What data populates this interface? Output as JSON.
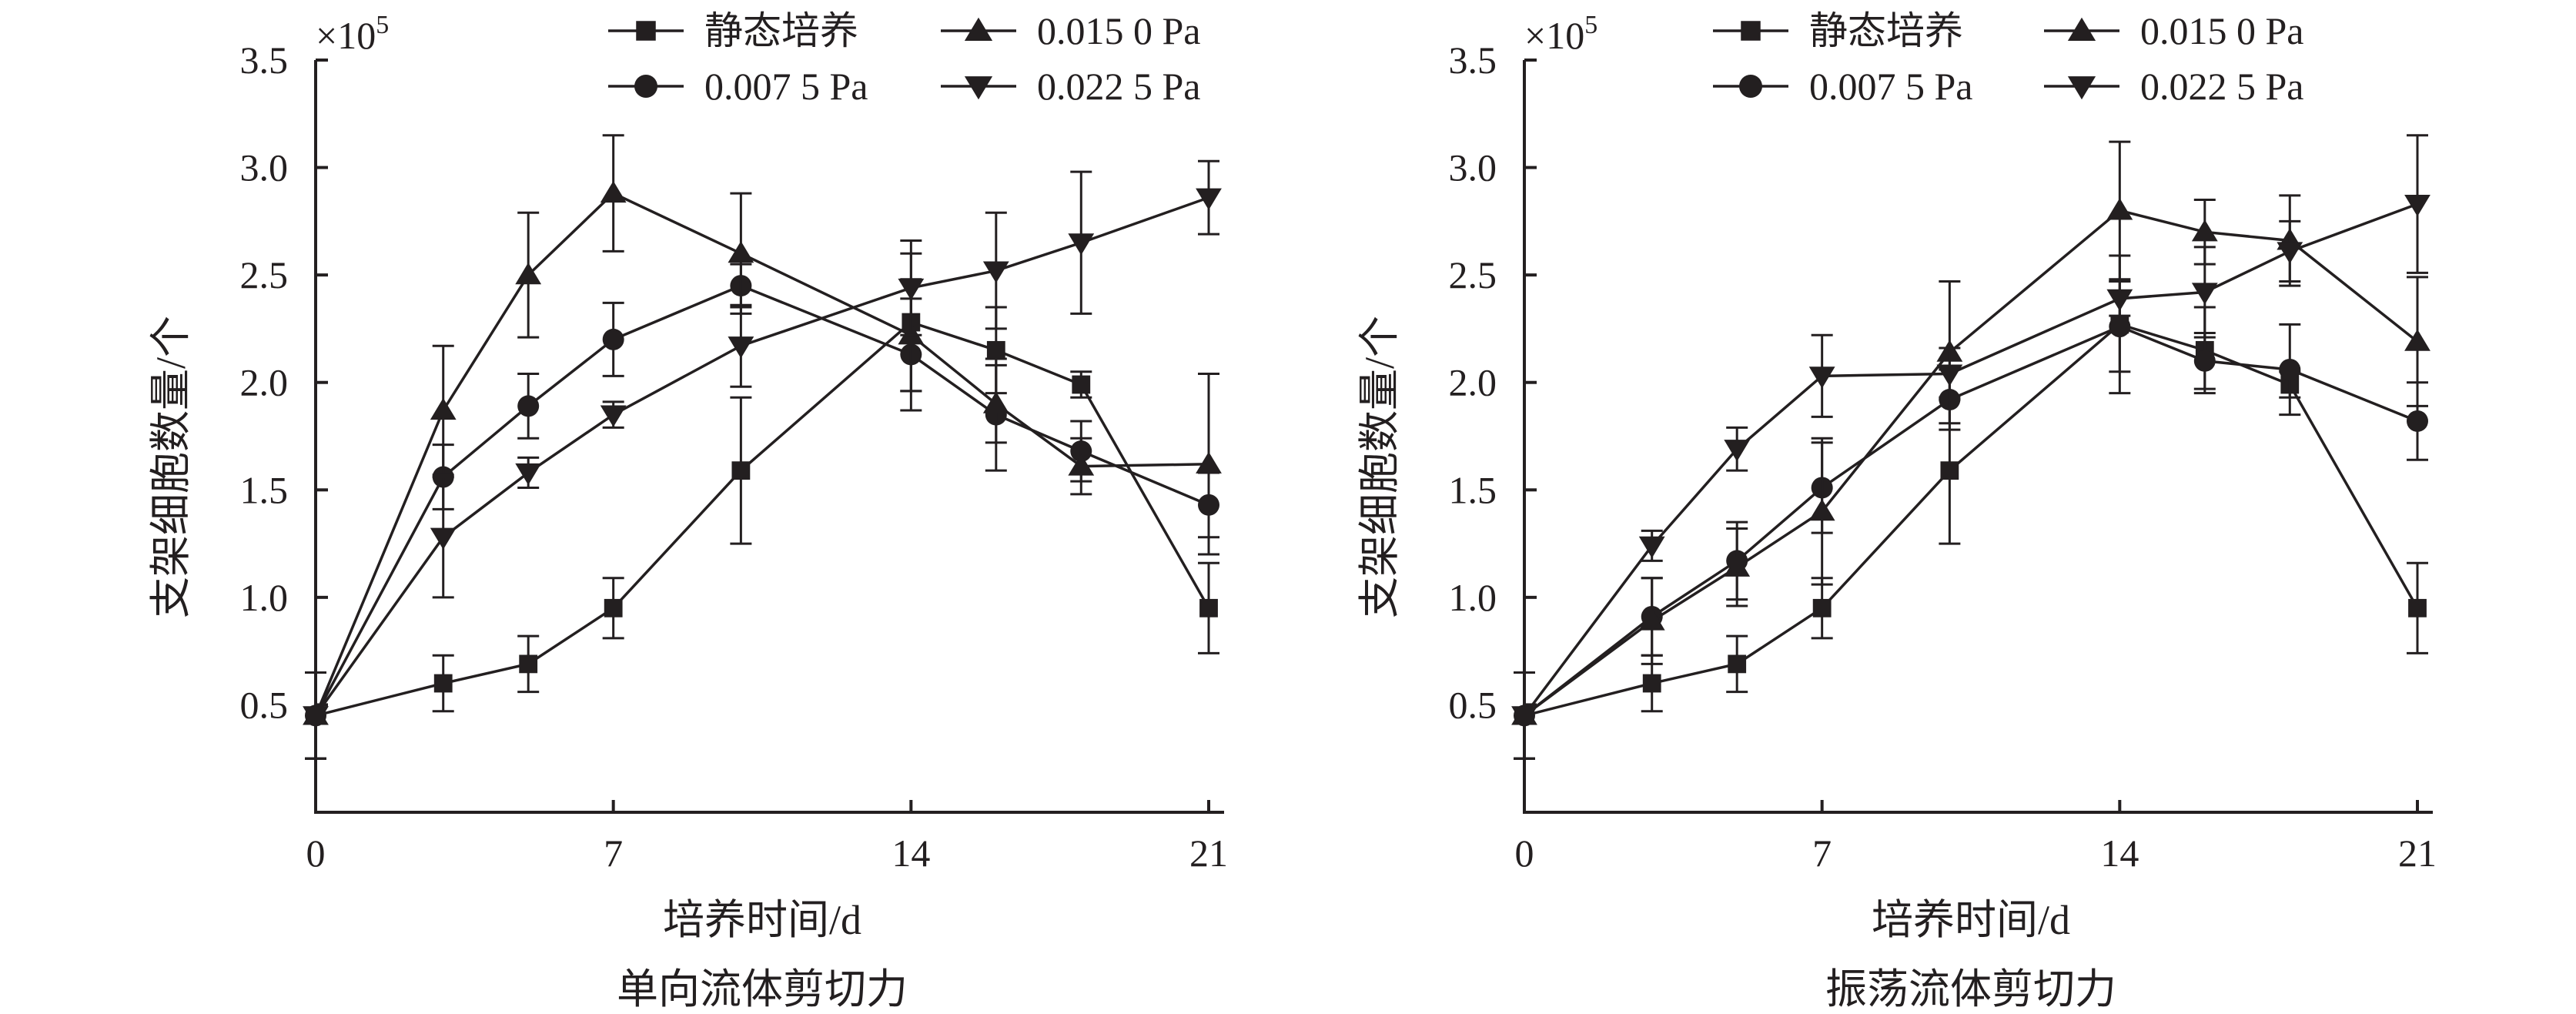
{
  "chart_data": [
    {
      "type": "line",
      "title": "单向流体剪切力",
      "xlabel": "培养时间/d",
      "ylabel": "支架细胞数量/个",
      "y_multiplier_base": "×10",
      "y_multiplier_exp": "5",
      "xlim": [
        0,
        21
      ],
      "ylim": [
        0,
        3.5
      ],
      "x_ticks": [
        0,
        7,
        14,
        21
      ],
      "x_tick_labels": [
        "0",
        "7",
        "14",
        "21"
      ],
      "y_ticks": [
        0.5,
        1.0,
        1.5,
        2.0,
        2.5,
        3.0,
        3.5
      ],
      "y_tick_labels": [
        "0.5",
        "1.0",
        "1.5",
        "2.0",
        "2.5",
        "3.0",
        "3.5"
      ],
      "grid": false,
      "legend_position": "top",
      "x": [
        0,
        3,
        5,
        7,
        10,
        14,
        16,
        18,
        21
      ],
      "series": [
        {
          "name": "静态培养",
          "marker": "square",
          "values": [
            0.45,
            0.6,
            0.69,
            0.95,
            1.59,
            2.28,
            2.15,
            1.99,
            0.95
          ],
          "errors": [
            0.2,
            0.13,
            0.13,
            0.14,
            0.34,
            0.32,
            0.2,
            0.06,
            0.21
          ]
        },
        {
          "name": "0.007 5 Pa",
          "marker": "circle",
          "values": [
            0.45,
            1.56,
            1.89,
            2.2,
            2.45,
            2.13,
            1.85,
            1.68,
            1.43
          ],
          "errors": [
            0.2,
            0.15,
            0.15,
            0.17,
            0.1,
            0.26,
            0.26,
            0.14,
            0.15
          ]
        },
        {
          "name": "0.015 0 Pa",
          "marker": "triangle-up",
          "values": [
            0.45,
            1.87,
            2.5,
            2.88,
            2.6,
            2.22,
            1.9,
            1.61,
            1.62
          ],
          "errors": [
            0.2,
            0.3,
            0.29,
            0.27,
            0.28,
            0.26,
            0.18,
            0.13,
            0.42
          ]
        },
        {
          "name": "0.022 5 Pa",
          "marker": "triangle-down",
          "values": [
            0.45,
            1.28,
            1.58,
            1.85,
            2.17,
            2.44,
            2.52,
            2.65,
            2.86
          ],
          "errors": [
            0.2,
            0.28,
            0.07,
            0.06,
            0.19,
            0.22,
            0.27,
            0.33,
            0.17
          ]
        }
      ]
    },
    {
      "type": "line",
      "title": "振荡流体剪切力",
      "xlabel": "培养时间/d",
      "ylabel": "支架细胞数量/个",
      "y_multiplier_base": "×10",
      "y_multiplier_exp": "5",
      "xlim": [
        0,
        21
      ],
      "ylim": [
        0,
        3.5
      ],
      "x_ticks": [
        0,
        7,
        14,
        21
      ],
      "x_tick_labels": [
        "0",
        "7",
        "14",
        "21"
      ],
      "y_ticks": [
        0.5,
        1.0,
        1.5,
        2.0,
        2.5,
        3.0,
        3.5
      ],
      "y_tick_labels": [
        "0.5",
        "1.0",
        "1.5",
        "2.0",
        "2.5",
        "3.0",
        "3.5"
      ],
      "grid": false,
      "legend_position": "top",
      "x": [
        0,
        3,
        5,
        7,
        10,
        14,
        16,
        18,
        21
      ],
      "series": [
        {
          "name": "静态培养",
          "marker": "square",
          "values": [
            0.45,
            0.6,
            0.69,
            0.95,
            1.59,
            2.27,
            2.15,
            1.99,
            0.95
          ],
          "errors": [
            0.2,
            0.13,
            0.13,
            0.14,
            0.34,
            0.32,
            0.2,
            0.06,
            0.21
          ]
        },
        {
          "name": "0.007 5 Pa",
          "marker": "circle",
          "values": [
            0.45,
            0.91,
            1.17,
            1.51,
            1.92,
            2.26,
            2.1,
            2.06,
            1.82
          ],
          "errors": [
            0.2,
            0.18,
            0.18,
            0.21,
            0.14,
            0.21,
            0.13,
            0.21,
            0.18
          ]
        },
        {
          "name": "0.015 0 Pa",
          "marker": "triangle-up",
          "values": [
            0.45,
            0.89,
            1.14,
            1.4,
            2.14,
            2.8,
            2.7,
            2.66,
            2.19
          ],
          "errors": [
            0.2,
            0.2,
            0.18,
            0.34,
            0.33,
            0.32,
            0.15,
            0.21,
            0.3
          ]
        },
        {
          "name": "0.022 5 Pa",
          "marker": "triangle-down",
          "values": [
            0.45,
            1.24,
            1.69,
            2.03,
            2.04,
            2.39,
            2.42,
            2.61,
            2.83
          ],
          "errors": [
            0.2,
            0.07,
            0.1,
            0.19,
            0.12,
            0.08,
            0.21,
            0.14,
            0.32
          ]
        }
      ]
    }
  ]
}
